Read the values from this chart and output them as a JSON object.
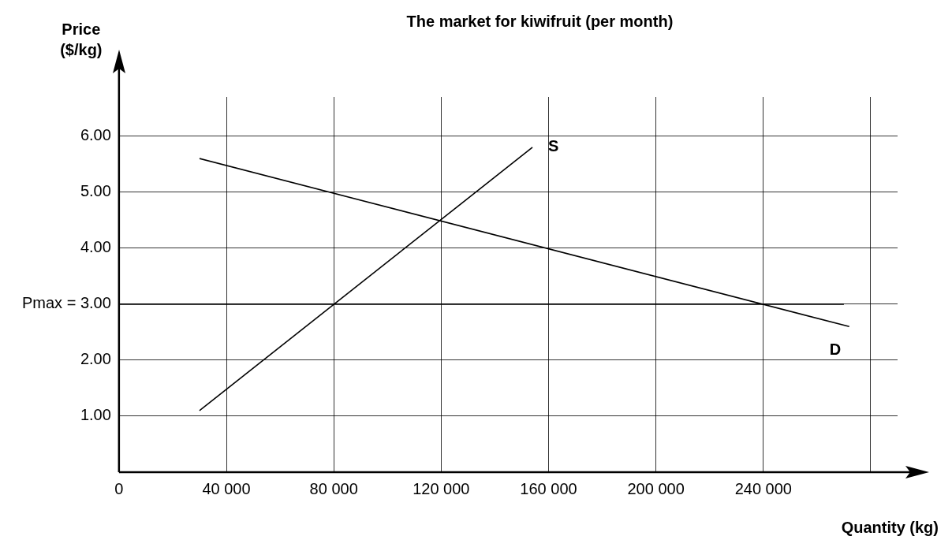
{
  "chart_data": {
    "type": "line",
    "title": "The market for kiwifruit (per month)",
    "xlabel": "Quantity (kg)",
    "ylabel": "Price ($/kg)",
    "xlim": [
      0,
      290000
    ],
    "xticks": [
      0,
      {
        "value": 40000,
        "label": "40 000"
      },
      {
        "value": 80000,
        "label": "80 000"
      },
      {
        "value": 120000,
        "label": "120 000"
      },
      {
        "value": 160000,
        "label": "160 000"
      },
      {
        "value": 200000,
        "label": "200 000"
      },
      {
        "value": 240000,
        "label": "240 000"
      },
      {
        "value": 280000,
        "label": null
      }
    ],
    "ylim": [
      0,
      6.7
    ],
    "yticks": [
      {
        "value": 1,
        "label": "1.00"
      },
      {
        "value": 2,
        "label": "2.00"
      },
      {
        "value": 3,
        "label": "Pmax = 3.00"
      },
      {
        "value": 4,
        "label": "4.00"
      },
      {
        "value": 5,
        "label": "5.00"
      },
      {
        "value": 6,
        "label": "6.00"
      }
    ],
    "grid": true,
    "marker": "none",
    "series": [
      {
        "name": "S",
        "color": "#000000",
        "x": [
          30000,
          154000
        ],
        "values": [
          1.1,
          5.8
        ]
      },
      {
        "name": "D",
        "color": "#000000",
        "x": [
          30000,
          272000
        ],
        "values": [
          5.6,
          2.6
        ]
      },
      {
        "color": "#000000",
        "x": [
          0,
          270000
        ],
        "values": [
          3,
          3
        ]
      }
    ]
  }
}
